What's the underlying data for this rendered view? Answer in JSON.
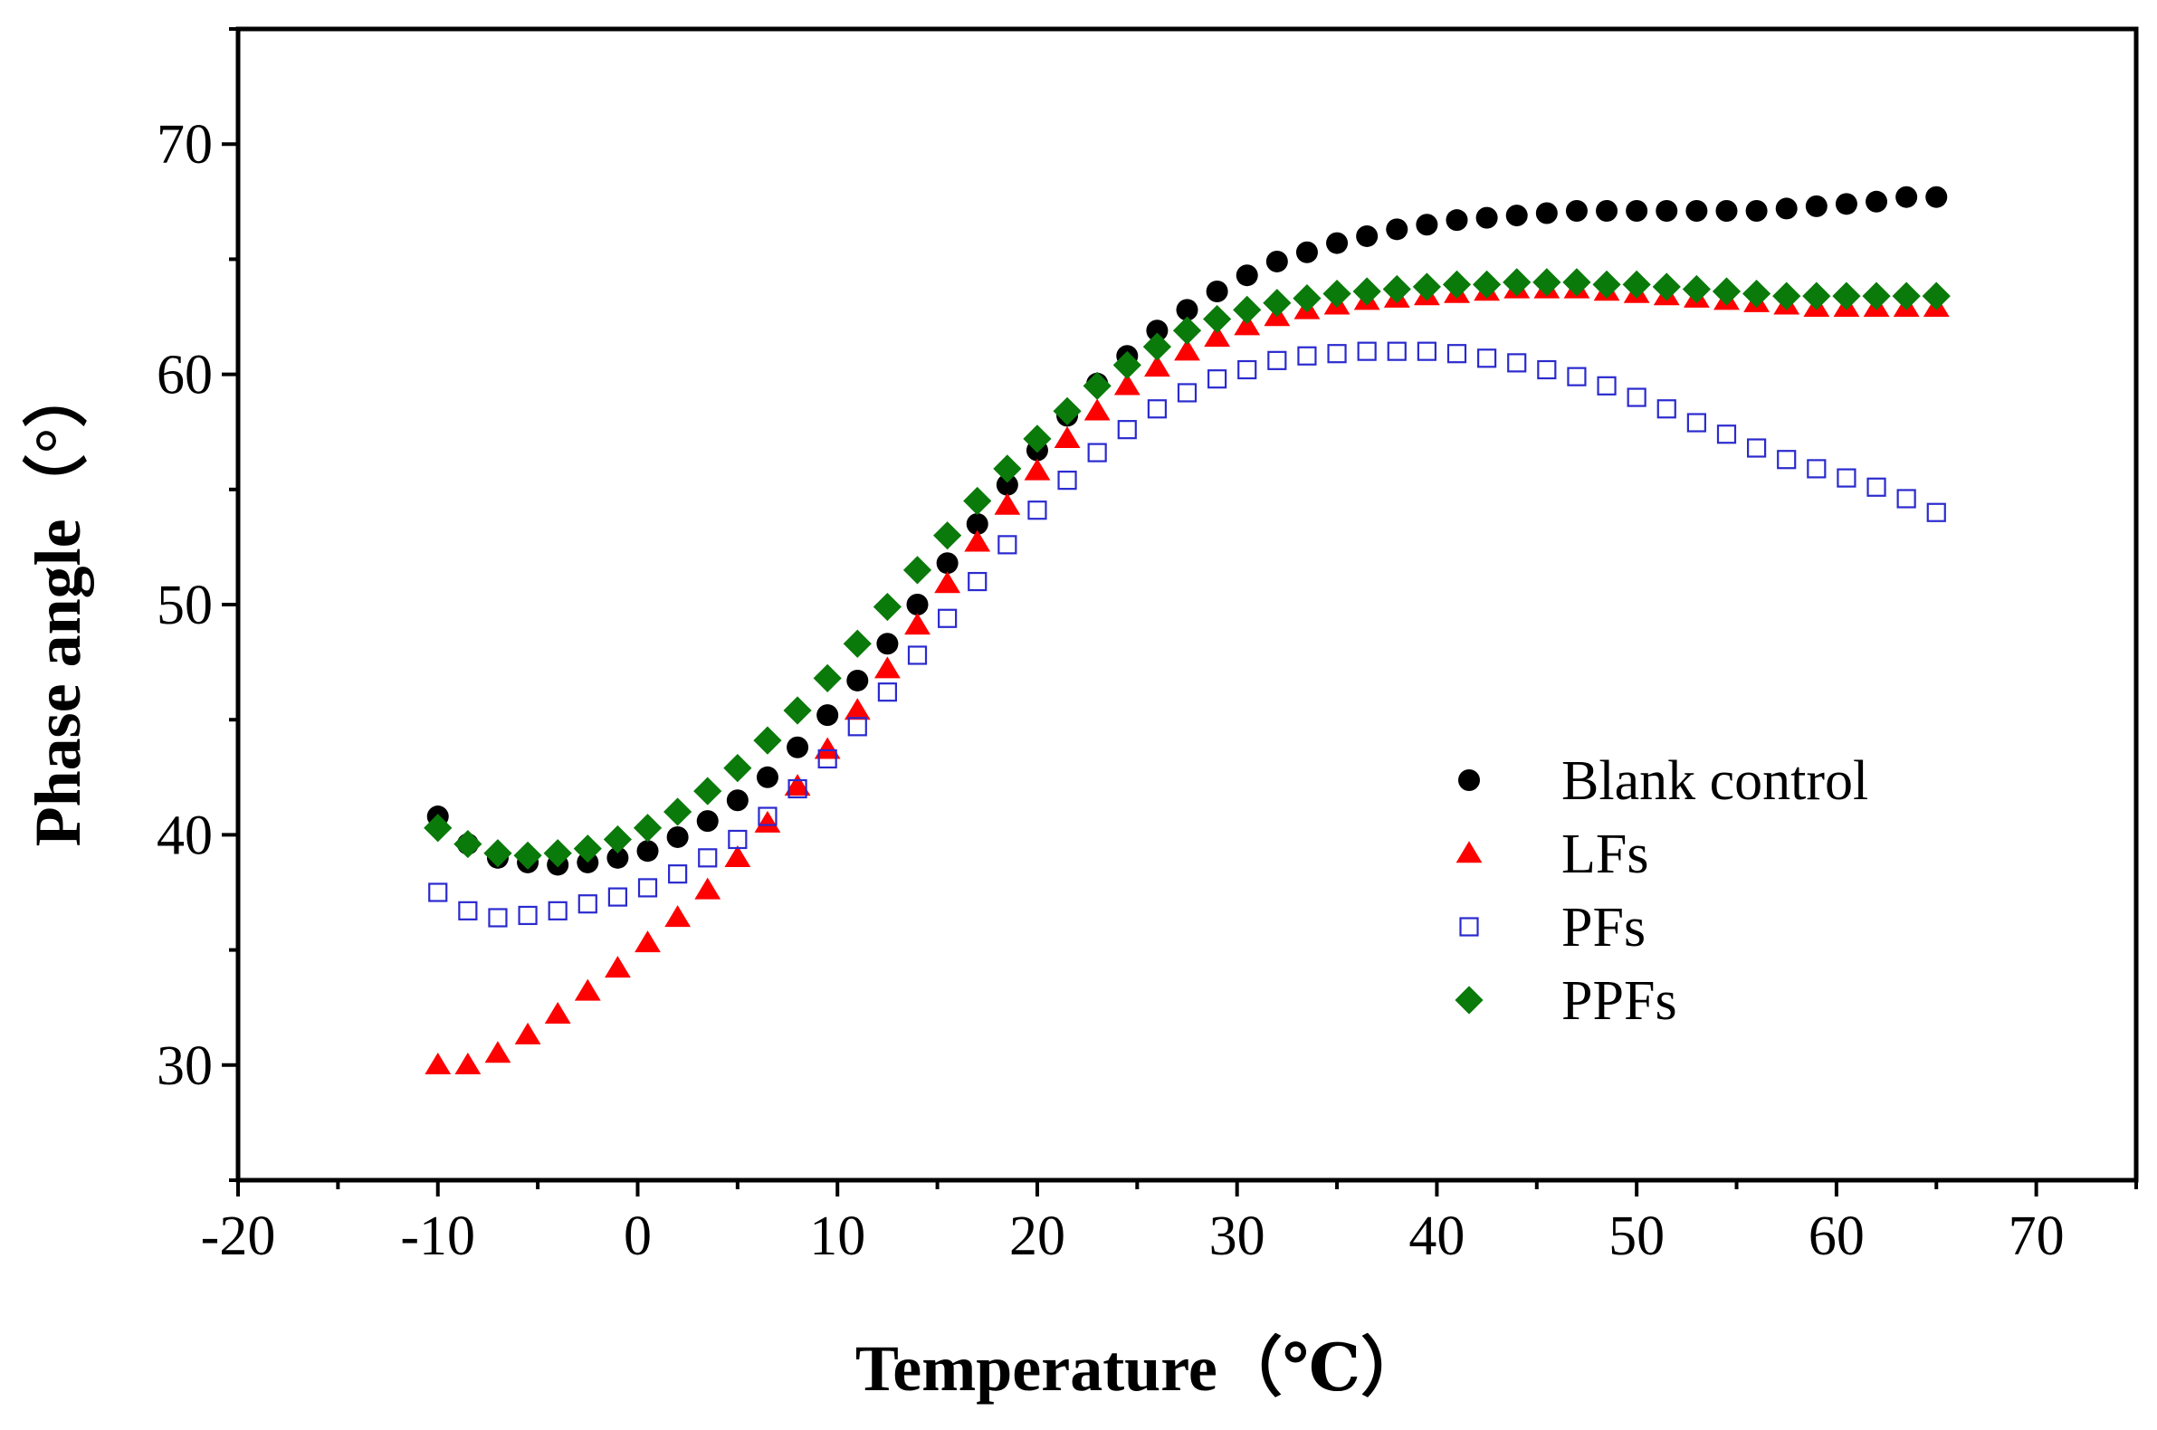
{
  "chart_data": {
    "type": "scatter",
    "title": "",
    "xlabel": "Temperature（℃）",
    "ylabel": "Phase angle（°）",
    "xlim": [
      -20,
      75
    ],
    "ylim": [
      25,
      75
    ],
    "xticks": [
      -20,
      -10,
      0,
      10,
      20,
      30,
      40,
      50,
      60,
      70
    ],
    "yticks": [
      30,
      40,
      50,
      60,
      70
    ],
    "x": [
      -10.0,
      -8.5,
      -7.0,
      -5.5,
      -4.0,
      -2.5,
      -1.0,
      0.5,
      2.0,
      3.5,
      5.0,
      6.5,
      8.0,
      9.5,
      11.0,
      12.5,
      14.0,
      15.5,
      17.0,
      18.5,
      20.0,
      21.5,
      23.0,
      24.5,
      26.0,
      27.5,
      29.0,
      30.5,
      32.0,
      33.5,
      35.0,
      36.5,
      38.0,
      39.5,
      41.0,
      42.5,
      44.0,
      45.5,
      47.0,
      48.5,
      50.0,
      51.5,
      53.0,
      54.5,
      56.0,
      57.5,
      59.0,
      60.5,
      62.0,
      63.5,
      65.0
    ],
    "series": [
      {
        "name": "Blank control",
        "marker": "circle",
        "color": "#000000",
        "values": [
          40.8,
          39.6,
          39.0,
          38.8,
          38.7,
          38.8,
          39.0,
          39.3,
          39.9,
          40.6,
          41.5,
          42.5,
          43.8,
          45.2,
          46.7,
          48.3,
          50.0,
          51.8,
          53.5,
          55.2,
          56.7,
          58.2,
          59.6,
          60.8,
          61.9,
          62.8,
          63.6,
          64.3,
          64.9,
          65.3,
          65.7,
          66.0,
          66.3,
          66.5,
          66.7,
          66.8,
          66.9,
          67.0,
          67.1,
          67.1,
          67.1,
          67.1,
          67.1,
          67.1,
          67.1,
          67.2,
          67.3,
          67.4,
          67.5,
          67.7,
          67.7
        ]
      },
      {
        "name": "LFs",
        "marker": "triangle",
        "color": "#ff0000",
        "values": [
          30.0,
          30.0,
          30.5,
          31.3,
          32.2,
          33.2,
          34.2,
          35.3,
          36.4,
          37.6,
          39.0,
          40.5,
          42.1,
          43.7,
          45.4,
          47.2,
          49.1,
          50.9,
          52.7,
          54.3,
          55.8,
          57.2,
          58.4,
          59.5,
          60.3,
          61.0,
          61.6,
          62.1,
          62.5,
          62.8,
          63.0,
          63.2,
          63.3,
          63.4,
          63.5,
          63.6,
          63.7,
          63.7,
          63.7,
          63.6,
          63.5,
          63.4,
          63.3,
          63.2,
          63.1,
          63.0,
          62.9,
          62.9,
          62.9,
          62.9,
          62.9
        ]
      },
      {
        "name": "PFs",
        "marker": "square-open",
        "color": "#2a2acf",
        "values": [
          37.5,
          36.7,
          36.4,
          36.5,
          36.7,
          37.0,
          37.3,
          37.7,
          38.3,
          39.0,
          39.8,
          40.8,
          42.0,
          43.3,
          44.7,
          46.2,
          47.8,
          49.4,
          51.0,
          52.6,
          54.1,
          55.4,
          56.6,
          57.6,
          58.5,
          59.2,
          59.8,
          60.2,
          60.6,
          60.8,
          60.9,
          61.0,
          61.0,
          61.0,
          60.9,
          60.7,
          60.5,
          60.2,
          59.9,
          59.5,
          59.0,
          58.5,
          57.9,
          57.4,
          56.8,
          56.3,
          55.9,
          55.5,
          55.1,
          54.6,
          54.0
        ]
      },
      {
        "name": "PPFs",
        "marker": "diamond",
        "color": "#0a7a0a",
        "values": [
          40.3,
          39.6,
          39.2,
          39.1,
          39.2,
          39.4,
          39.8,
          40.3,
          41.0,
          41.9,
          42.9,
          44.1,
          45.4,
          46.8,
          48.3,
          49.9,
          51.5,
          53.0,
          54.5,
          55.9,
          57.2,
          58.4,
          59.5,
          60.4,
          61.2,
          61.9,
          62.4,
          62.8,
          63.1,
          63.3,
          63.5,
          63.6,
          63.7,
          63.8,
          63.9,
          63.9,
          64.0,
          64.0,
          64.0,
          63.9,
          63.9,
          63.8,
          63.7,
          63.6,
          63.5,
          63.4,
          63.4,
          63.4,
          63.4,
          63.4,
          63.4
        ]
      }
    ],
    "legend_position": "center-right"
  }
}
